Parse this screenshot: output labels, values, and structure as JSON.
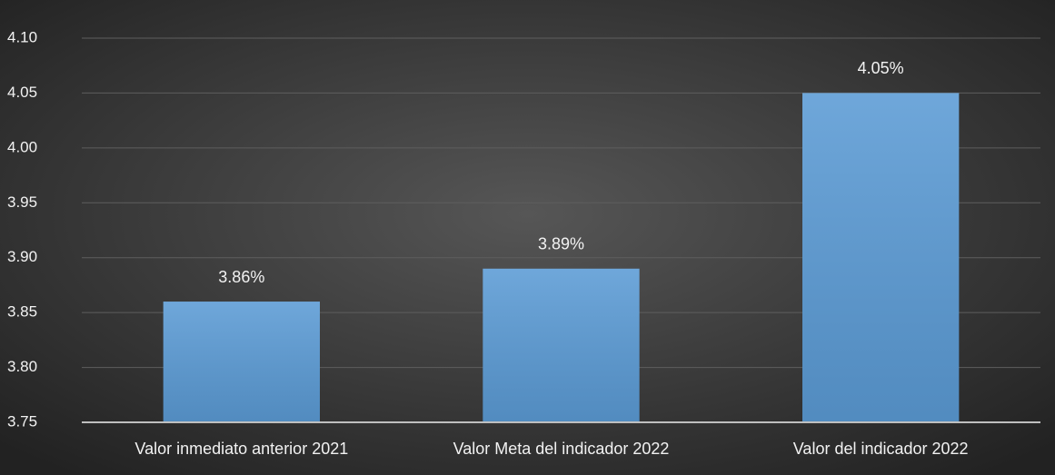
{
  "chart_data": {
    "type": "bar",
    "categories": [
      "Valor inmediato anterior 2021",
      "Valor Meta del indicador 2022",
      "Valor del indicador 2022"
    ],
    "values": [
      3.86,
      3.89,
      4.05
    ],
    "value_labels": [
      "3.86%",
      "3.89%",
      "4.05%"
    ],
    "color": "#5b9bd5",
    "ylim": [
      3.75,
      4.1
    ],
    "yticks": [
      {
        "value": 3.75,
        "label": "3.75"
      },
      {
        "value": 3.8,
        "label": "3.80"
      },
      3.85,
      {
        "value": 3.9,
        "label": "3.90"
      },
      3.95,
      {
        "value": 4.0,
        "label": "4.00"
      },
      4.05,
      {
        "value": 4.1,
        "label": "4.10"
      }
    ],
    "grid": true
  }
}
